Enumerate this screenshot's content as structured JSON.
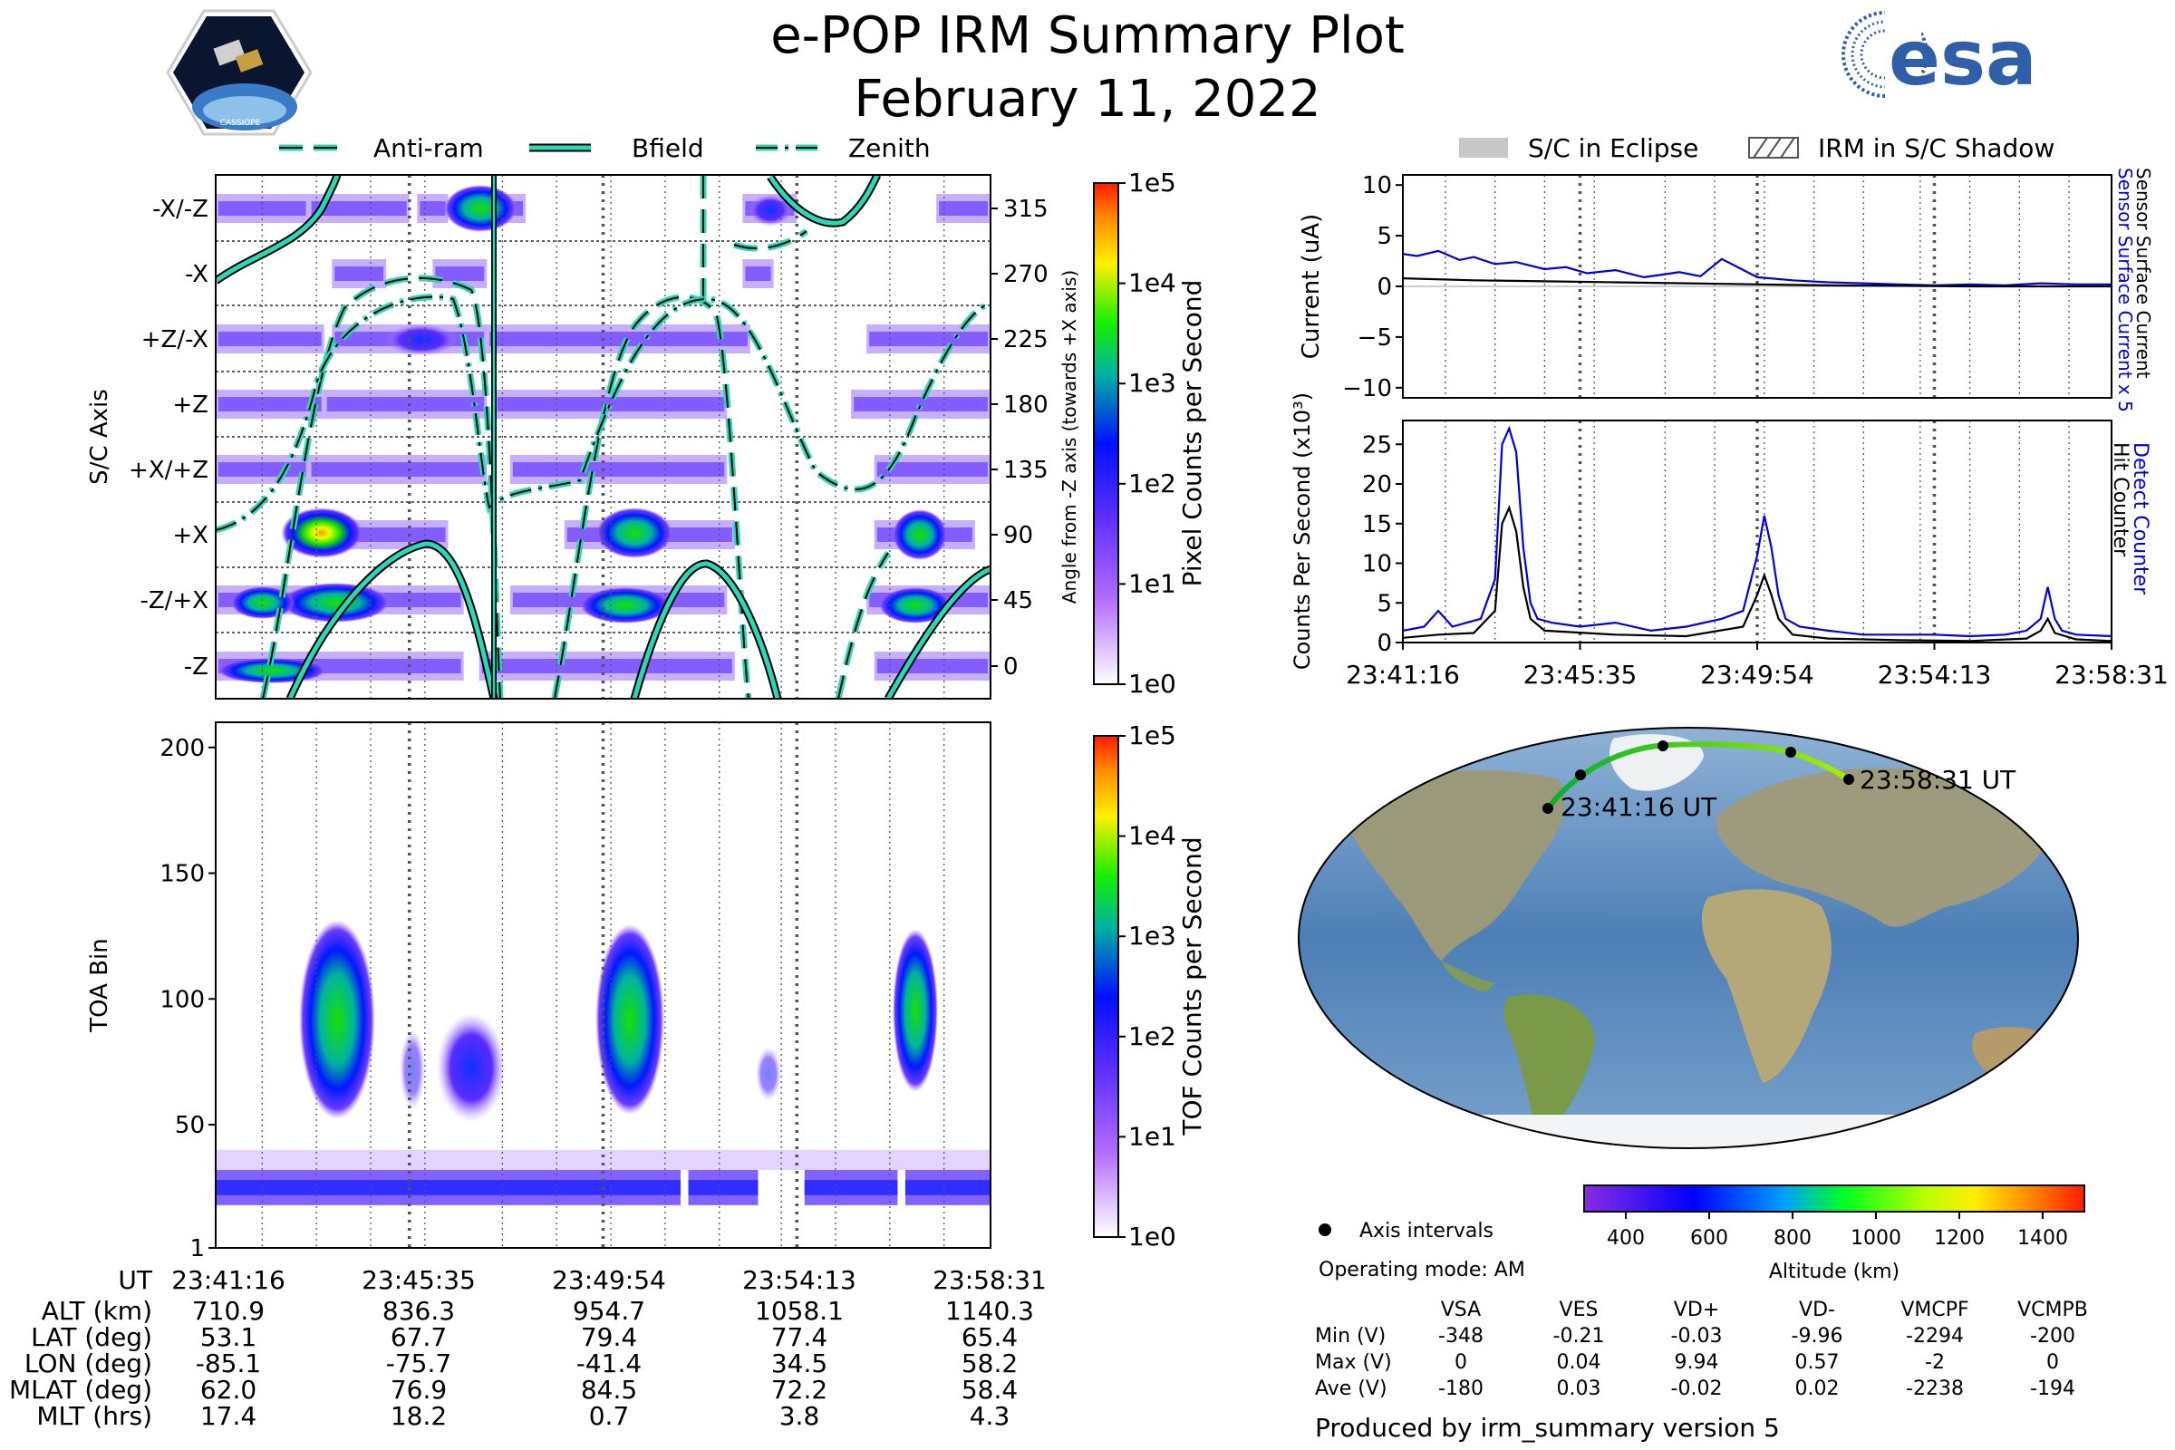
{
  "header": {
    "title": "e-POP IRM Summary Plot",
    "date": "February 11, 2022",
    "mission_logo_text": "CASSIOPE",
    "agency_logo_text": "esa"
  },
  "legend_top": {
    "items": [
      "Anti-ram",
      "Bfield",
      "Zenith"
    ]
  },
  "legend_right": {
    "items": [
      "S/C in Eclipse",
      "IRM in S/C Shadow"
    ]
  },
  "colors": {
    "dark": "#000000",
    "cyan": "#2ad8b6",
    "blue": "#0000dd",
    "grey_dash": "#555555"
  },
  "chart_data": [
    {
      "id": "pixel_counts",
      "type": "heatmap",
      "ylabel": "S/C Axis",
      "axis_labels": [
        "-X/-Z",
        "-X",
        "+Z/-X",
        "+Z",
        "+X/+Z",
        "+X",
        "-Z/+X",
        "-Z"
      ],
      "right_ticks": [
        "315",
        "270",
        "225",
        "180",
        "135",
        "90",
        "45",
        "0"
      ],
      "right_label": "Angle from -Z axis (towards +X axis)",
      "ylim": [
        -20,
        350
      ],
      "lines": [
        "Anti-ram",
        "Bfield",
        "Zenith"
      ],
      "colorbar": {
        "label": "Pixel Counts per Second",
        "ticks": [
          "1e5",
          "1e4",
          "1e3",
          "1e2",
          "1e1",
          "1e0"
        ]
      }
    },
    {
      "id": "surface_current",
      "type": "line",
      "ylabel": "Current (uA)",
      "ylim": [
        -11,
        11
      ],
      "yticks": [
        "10",
        "5",
        "0",
        "−5",
        "−10"
      ],
      "right_labels": [
        "Sensor Surface Current x 5",
        "Sensor Surface Current"
      ],
      "series": [
        {
          "name": "Sensor Surface Current x 5",
          "color": "#0000dd",
          "t": [
            0,
            0.02,
            0.05,
            0.08,
            0.1,
            0.13,
            0.16,
            0.2,
            0.23,
            0.26,
            0.3,
            0.34,
            0.37,
            0.39,
            0.42,
            0.45,
            0.5,
            0.55,
            0.6,
            0.65,
            0.7,
            0.75,
            0.8,
            0.85,
            0.9,
            0.95,
            1.0
          ],
          "values": [
            3.2,
            3.0,
            3.5,
            2.6,
            2.9,
            2.2,
            2.4,
            1.7,
            1.9,
            1.3,
            1.6,
            0.9,
            1.2,
            1.4,
            1.0,
            2.7,
            0.9,
            0.6,
            0.4,
            0.3,
            0.2,
            0.1,
            0.2,
            0.1,
            0.3,
            0.2,
            0.2
          ]
        },
        {
          "name": "Sensor Surface Current",
          "color": "#000000",
          "t": [
            0,
            0.1,
            0.2,
            0.3,
            0.4,
            0.5,
            0.6,
            0.7,
            0.8,
            0.9,
            1.0
          ],
          "values": [
            0.8,
            0.6,
            0.5,
            0.4,
            0.3,
            0.2,
            0.1,
            0.05,
            0.0,
            0.0,
            0.0
          ]
        }
      ]
    },
    {
      "id": "hit_counter",
      "type": "line",
      "ylabel": "Counts Per Second (x10³)",
      "ylim": [
        0,
        28
      ],
      "yticks": [
        "25",
        "20",
        "15",
        "10",
        "5",
        "0"
      ],
      "right_labels": [
        "Detect Counter",
        "Hit Counter"
      ],
      "x_tick_labels": [
        "23:41:16",
        "23:45:35",
        "23:49:54",
        "23:54:13",
        "23:58:31"
      ],
      "series": [
        {
          "name": "Detect Counter",
          "color": "#0000dd",
          "t": [
            0,
            0.03,
            0.05,
            0.07,
            0.09,
            0.11,
            0.13,
            0.14,
            0.15,
            0.16,
            0.17,
            0.18,
            0.19,
            0.21,
            0.25,
            0.3,
            0.35,
            0.4,
            0.45,
            0.48,
            0.5,
            0.51,
            0.52,
            0.53,
            0.54,
            0.56,
            0.6,
            0.65,
            0.7,
            0.75,
            0.8,
            0.85,
            0.88,
            0.9,
            0.91,
            0.92,
            0.93,
            0.95,
            1.0
          ],
          "values": [
            1.5,
            2.0,
            4.0,
            2.0,
            2.5,
            3.0,
            8.0,
            25.0,
            27.0,
            24.0,
            12.0,
            5.0,
            3.0,
            2.5,
            2.0,
            2.5,
            1.5,
            2.0,
            3.0,
            4.0,
            11.0,
            16.0,
            12.0,
            6.0,
            3.0,
            2.0,
            1.5,
            1.0,
            1.0,
            1.0,
            0.8,
            1.0,
            1.5,
            3.0,
            7.0,
            3.0,
            1.5,
            1.0,
            0.8
          ]
        },
        {
          "name": "Hit Counter",
          "color": "#000000",
          "t": [
            0,
            0.05,
            0.1,
            0.13,
            0.14,
            0.15,
            0.16,
            0.17,
            0.18,
            0.2,
            0.3,
            0.4,
            0.48,
            0.5,
            0.51,
            0.52,
            0.53,
            0.55,
            0.6,
            0.7,
            0.8,
            0.88,
            0.9,
            0.91,
            0.92,
            0.95,
            1.0
          ],
          "values": [
            0.6,
            1.0,
            1.2,
            4.0,
            15.0,
            17.0,
            14.0,
            7.0,
            3.0,
            1.5,
            1.0,
            0.8,
            2.0,
            6.0,
            8.5,
            6.0,
            3.0,
            1.0,
            0.5,
            0.3,
            0.2,
            0.5,
            1.5,
            3.0,
            1.2,
            0.4,
            0.2
          ]
        }
      ]
    },
    {
      "id": "tof_counts",
      "type": "heatmap",
      "ylabel": "TOA Bin",
      "ylim": [
        1,
        210
      ],
      "yticks": [
        "200",
        "150",
        "100",
        "50",
        "1"
      ],
      "colorbar": {
        "label": "TOF Counts per Second",
        "ticks": [
          "1e5",
          "1e4",
          "1e3",
          "1e2",
          "1e1",
          "1e0"
        ]
      }
    },
    {
      "id": "altitude_map",
      "type": "scatter",
      "track_start_label": "23:41:16 UT",
      "track_end_label": "23:58:31 UT",
      "legend_label": "Axis intervals",
      "operating_mode": "Operating mode: AM",
      "colorbar": {
        "label": "Altitude (km)",
        "ticks": [
          "400",
          "600",
          "800",
          "1000",
          "1200",
          "1400"
        ],
        "range": [
          300,
          1500
        ]
      }
    }
  ],
  "orbit_table": {
    "header": "UT",
    "times": [
      "23:41:16",
      "23:45:35",
      "23:49:54",
      "23:54:13",
      "23:58:31"
    ],
    "rows": [
      {
        "label": "ALT (km)",
        "values": [
          "710.9",
          "836.3",
          "954.7",
          "1058.1",
          "1140.3"
        ]
      },
      {
        "label": "LAT (deg)",
        "values": [
          "53.1",
          "67.7",
          "79.4",
          "77.4",
          "65.4"
        ]
      },
      {
        "label": "LON (deg)",
        "values": [
          "-85.1",
          "-75.7",
          "-41.4",
          "34.5",
          "58.2"
        ]
      },
      {
        "label": "MLAT (deg)",
        "values": [
          "62.0",
          "76.9",
          "84.5",
          "72.2",
          "58.4"
        ]
      },
      {
        "label": "MLT (hrs)",
        "values": [
          "17.4",
          "18.2",
          "0.7",
          "3.8",
          "4.3"
        ]
      }
    ]
  },
  "voltage_table": {
    "columns": [
      "VSA",
      "VES",
      "VD+",
      "VD-",
      "VMCPF",
      "VCMPB"
    ],
    "rows": [
      {
        "label": "Min (V)",
        "values": [
          "-348",
          "-0.21",
          "-0.03",
          "-9.96",
          "-2294",
          "-200"
        ]
      },
      {
        "label": "Max (V)",
        "values": [
          "0",
          "0.04",
          "9.94",
          "0.57",
          "-2",
          "0"
        ]
      },
      {
        "label": "Ave (V)",
        "values": [
          "-180",
          "0.03",
          "-0.02",
          "0.02",
          "-2238",
          "-194"
        ]
      }
    ]
  },
  "footer": {
    "produced_by": "Produced by irm_summary version 5"
  }
}
